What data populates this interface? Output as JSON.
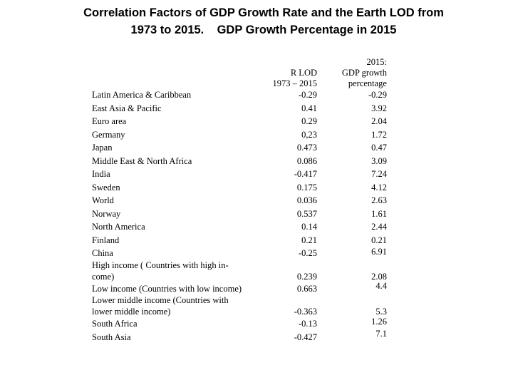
{
  "title": {
    "line1": "Correlation Factors of GDP Growth Rate and the Earth LOD from",
    "line2": "1973 to 2015.    GDP Growth Percentage in 2015"
  },
  "table": {
    "headers": {
      "col1_line1": "R LOD",
      "col1_line2": "1973 – 2015",
      "col2_line1": "2015:",
      "col2_line2": "GDP growth",
      "col2_line3": "percentage"
    },
    "rows": [
      {
        "label": [
          "Latin America & Caribbean"
        ],
        "r_lod": "-0.29",
        "gdp": "-0.29"
      },
      {
        "label": [
          "East Asia & Pacific"
        ],
        "r_lod": "0.41",
        "gdp": "3.92"
      },
      {
        "label": [
          "Euro area"
        ],
        "r_lod": "0.29",
        "gdp": "2.04"
      },
      {
        "label": [
          "Germany"
        ],
        "r_lod": "0,23",
        "gdp": "1.72"
      },
      {
        "label": [
          "Japan"
        ],
        "r_lod": "0.473",
        "gdp": "0.47"
      },
      {
        "label": [
          "Middle East & North Africa"
        ],
        "r_lod": "0.086",
        "gdp": "3.09"
      },
      {
        "label": [
          "India"
        ],
        "r_lod": "-0.417",
        "gdp": "7.24"
      },
      {
        "label": [
          "Sweden"
        ],
        "r_lod": "0.175",
        "gdp": "4.12"
      },
      {
        "label": [
          "World"
        ],
        "r_lod": "0.036",
        "gdp": "2.63"
      },
      {
        "label": [
          "Norway"
        ],
        "r_lod": "0.537",
        "gdp": "1.61"
      },
      {
        "label": [
          "North America"
        ],
        "r_lod": "0.14",
        "gdp": "2.44"
      },
      {
        "label": [
          "Finland"
        ],
        "r_lod": "0.21",
        "gdp": "0.21"
      },
      {
        "label": [
          "China"
        ],
        "r_lod": "-0.25",
        "gdp": "6.91"
      },
      {
        "label": [
          "High income ( Countries with high in-",
          "come)"
        ],
        "r_lod": "0.239",
        "gdp": "2.08"
      },
      {
        "label": [
          "Low income (Countries with low income)"
        ],
        "r_lod": "0.663",
        "gdp": "4.4"
      },
      {
        "label": [
          "Lower middle income (Countries with",
          "lower middle income)"
        ],
        "r_lod": "-0.363",
        "gdp": "5.3"
      },
      {
        "label": [
          "South Africa"
        ],
        "r_lod": "-0.13",
        "gdp": "1.26"
      },
      {
        "label": [
          "South Asia"
        ],
        "r_lod": "-0.427",
        "gdp": "7.1"
      }
    ]
  }
}
